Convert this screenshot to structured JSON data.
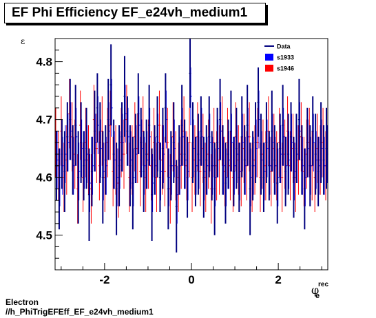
{
  "chart_data": {
    "type": "scatter",
    "title": "EF Phi Efficiency EF_e24vh_medium1",
    "ylabel": "ε",
    "xlabel_main": "φ",
    "xlabel_sup": "rec",
    "xlabel_sub": "e",
    "xlim": [
      -3.14,
      3.14
    ],
    "ylim": [
      4.44,
      4.84
    ],
    "xticks": [
      -2,
      0,
      2
    ],
    "xtick_labels": [
      "-2",
      "0",
      "2"
    ],
    "yticks": [
      4.5,
      4.6,
      4.7,
      4.8
    ],
    "ytick_labels": [
      "4.5",
      "4.6",
      "4.7",
      "4.8"
    ],
    "grid": false,
    "legend_position": "top-right",
    "legend": [
      {
        "label": "Data",
        "style": "line",
        "color": "#00007f"
      },
      {
        "label": "s1933",
        "style": "box",
        "color": "#0000ff"
      },
      {
        "label": "s1946",
        "style": "box",
        "color": "#ff0000"
      }
    ],
    "series": [
      {
        "name": "Data",
        "color": "#00007f",
        "bins": 100,
        "y": [
          4.62,
          4.58,
          4.64,
          4.61,
          4.67,
          4.7,
          4.63,
          4.69,
          4.6,
          4.66,
          4.62,
          4.65,
          4.57,
          4.61,
          4.68,
          4.72,
          4.66,
          4.6,
          4.63,
          4.7,
          4.76,
          4.64,
          4.58,
          4.62,
          4.67,
          4.74,
          4.68,
          4.62,
          4.59,
          4.65,
          4.71,
          4.66,
          4.61,
          4.64,
          4.69,
          4.57,
          4.63,
          4.67,
          4.6,
          4.65,
          4.72,
          4.58,
          4.62,
          4.66,
          4.55,
          4.63,
          4.69,
          4.64,
          4.6,
          4.78,
          4.66,
          4.61,
          4.64,
          4.68,
          4.6,
          4.63,
          4.67,
          4.62,
          4.58,
          4.66,
          4.7,
          4.63,
          4.59,
          4.64,
          4.68,
          4.61,
          4.65,
          4.6,
          4.67,
          4.63,
          4.69,
          4.58,
          4.62,
          4.66,
          4.73,
          4.64,
          4.6,
          4.66,
          4.62,
          4.68,
          4.63,
          4.59,
          4.65,
          4.69,
          4.61,
          4.64,
          4.67,
          4.6,
          4.65,
          4.7,
          4.63,
          4.58,
          4.66,
          4.62,
          4.68,
          4.64,
          4.61,
          4.66,
          4.63,
          4.65
        ],
        "err": [
          0.06,
          0.07,
          0.06,
          0.07,
          0.06,
          0.07,
          0.06,
          0.07,
          0.08,
          0.07,
          0.06,
          0.07,
          0.08,
          0.06,
          0.07,
          0.06,
          0.07,
          0.08,
          0.06,
          0.07,
          0.07,
          0.06,
          0.08,
          0.07,
          0.06,
          0.07,
          0.06,
          0.07,
          0.08,
          0.06,
          0.07,
          0.06,
          0.07,
          0.06,
          0.07,
          0.08,
          0.06,
          0.07,
          0.06,
          0.07,
          0.06,
          0.07,
          0.06,
          0.07,
          0.08,
          0.06,
          0.07,
          0.06,
          0.07,
          0.06,
          0.07,
          0.06,
          0.07,
          0.06,
          0.07,
          0.06,
          0.07,
          0.06,
          0.08,
          0.06,
          0.07,
          0.06,
          0.07,
          0.06,
          0.07,
          0.06,
          0.07,
          0.06,
          0.07,
          0.06,
          0.07,
          0.08,
          0.06,
          0.07,
          0.06,
          0.07,
          0.06,
          0.07,
          0.06,
          0.07,
          0.06,
          0.07,
          0.06,
          0.07,
          0.06,
          0.07,
          0.06,
          0.07,
          0.06,
          0.07,
          0.06,
          0.07,
          0.06,
          0.07,
          0.06,
          0.07,
          0.06,
          0.07,
          0.06,
          0.07
        ]
      },
      {
        "name": "s1933",
        "color": "#0000ff",
        "bins": 100,
        "y": [
          4.63,
          4.6,
          4.62,
          4.64,
          4.66,
          4.68,
          4.62,
          4.67,
          4.61,
          4.65,
          4.63,
          4.64,
          4.59,
          4.62,
          4.66,
          4.69,
          4.65,
          4.61,
          4.62,
          4.68,
          4.72,
          4.63,
          4.6,
          4.63,
          4.66,
          4.71,
          4.67,
          4.63,
          4.6,
          4.64,
          4.69,
          4.65,
          4.62,
          4.63,
          4.67,
          4.59,
          4.62,
          4.66,
          4.61,
          4.64,
          4.7,
          4.6,
          4.62,
          4.65,
          4.57,
          4.62,
          4.67,
          4.63,
          4.61,
          4.74,
          4.65,
          4.62,
          4.63,
          4.67,
          4.61,
          4.62,
          4.66,
          4.62,
          4.6,
          4.65,
          4.68,
          4.62,
          4.6,
          4.63,
          4.66,
          4.62,
          4.64,
          4.61,
          4.66,
          4.62,
          4.67,
          4.6,
          4.62,
          4.65,
          4.7,
          4.63,
          4.61,
          4.65,
          4.62,
          4.66,
          4.62,
          4.6,
          4.64,
          4.67,
          4.62,
          4.63,
          4.66,
          4.61,
          4.64,
          4.68,
          4.62,
          4.6,
          4.65,
          4.62,
          4.66,
          4.63,
          4.62,
          4.65,
          4.62,
          4.64
        ],
        "err": [
          0.05,
          0.05,
          0.05,
          0.05,
          0.05,
          0.05,
          0.05,
          0.05,
          0.05,
          0.05,
          0.05,
          0.05,
          0.05,
          0.05,
          0.05,
          0.05,
          0.05,
          0.05,
          0.05,
          0.05,
          0.05,
          0.05,
          0.05,
          0.05,
          0.05,
          0.05,
          0.05,
          0.05,
          0.05,
          0.05,
          0.05,
          0.05,
          0.05,
          0.05,
          0.05,
          0.05,
          0.05,
          0.05,
          0.05,
          0.05,
          0.05,
          0.05,
          0.05,
          0.05,
          0.05,
          0.05,
          0.05,
          0.05,
          0.05,
          0.05,
          0.05,
          0.05,
          0.05,
          0.05,
          0.05,
          0.05,
          0.05,
          0.05,
          0.05,
          0.05,
          0.05,
          0.05,
          0.05,
          0.05,
          0.05,
          0.05,
          0.05,
          0.05,
          0.05,
          0.05,
          0.05,
          0.05,
          0.05,
          0.05,
          0.05,
          0.05,
          0.05,
          0.05,
          0.05,
          0.05,
          0.05,
          0.05,
          0.05,
          0.05,
          0.05,
          0.05,
          0.05,
          0.05,
          0.05,
          0.05,
          0.05,
          0.05,
          0.05,
          0.05,
          0.05,
          0.05,
          0.05,
          0.05,
          0.05,
          0.05
        ]
      },
      {
        "name": "s1946",
        "color": "#ff0000",
        "bins": 100,
        "y": [
          4.66,
          4.62,
          4.68,
          4.6,
          4.63,
          4.71,
          4.67,
          4.64,
          4.58,
          4.69,
          4.6,
          4.66,
          4.63,
          4.58,
          4.7,
          4.65,
          4.62,
          4.68,
          4.6,
          4.66,
          4.69,
          4.61,
          4.63,
          4.59,
          4.66,
          4.64,
          4.7,
          4.6,
          4.63,
          4.67,
          4.65,
          4.61,
          4.68,
          4.6,
          4.64,
          4.62,
          4.66,
          4.6,
          4.69,
          4.63,
          4.61,
          4.66,
          4.58,
          4.67,
          4.62,
          4.6,
          4.64,
          4.68,
          4.62,
          4.66,
          4.6,
          4.63,
          4.67,
          4.61,
          4.65,
          4.6,
          4.64,
          4.58,
          4.66,
          4.62,
          4.63,
          4.68,
          4.61,
          4.66,
          4.62,
          4.6,
          4.67,
          4.63,
          4.61,
          4.65,
          4.62,
          4.67,
          4.6,
          4.63,
          4.66,
          4.6,
          4.64,
          4.62,
          4.68,
          4.61,
          4.65,
          4.62,
          4.66,
          4.6,
          4.64,
          4.68,
          4.62,
          4.65,
          4.6,
          4.63,
          4.67,
          4.61,
          4.64,
          4.66,
          4.62,
          4.6,
          4.65,
          4.63,
          4.66,
          4.62
        ],
        "err": [
          0.06,
          0.06,
          0.06,
          0.06,
          0.06,
          0.06,
          0.06,
          0.06,
          0.06,
          0.06,
          0.06,
          0.06,
          0.06,
          0.06,
          0.06,
          0.06,
          0.06,
          0.06,
          0.06,
          0.06,
          0.06,
          0.06,
          0.06,
          0.06,
          0.06,
          0.06,
          0.06,
          0.06,
          0.06,
          0.06,
          0.06,
          0.06,
          0.06,
          0.06,
          0.06,
          0.06,
          0.06,
          0.06,
          0.06,
          0.06,
          0.06,
          0.06,
          0.06,
          0.06,
          0.06,
          0.06,
          0.06,
          0.06,
          0.06,
          0.06,
          0.06,
          0.06,
          0.06,
          0.06,
          0.06,
          0.06,
          0.06,
          0.06,
          0.06,
          0.06,
          0.06,
          0.06,
          0.06,
          0.06,
          0.06,
          0.06,
          0.06,
          0.06,
          0.06,
          0.06,
          0.06,
          0.06,
          0.06,
          0.06,
          0.06,
          0.06,
          0.06,
          0.06,
          0.06,
          0.06,
          0.06,
          0.06,
          0.06,
          0.06,
          0.06,
          0.06,
          0.06,
          0.06,
          0.06,
          0.06,
          0.06,
          0.06,
          0.06,
          0.06,
          0.06,
          0.06,
          0.06,
          0.06,
          0.06,
          0.06
        ]
      }
    ]
  },
  "footer": {
    "line1": "Electron",
    "line2": "//h_PhiTrigEFEff_EF_e24vh_medium1"
  }
}
